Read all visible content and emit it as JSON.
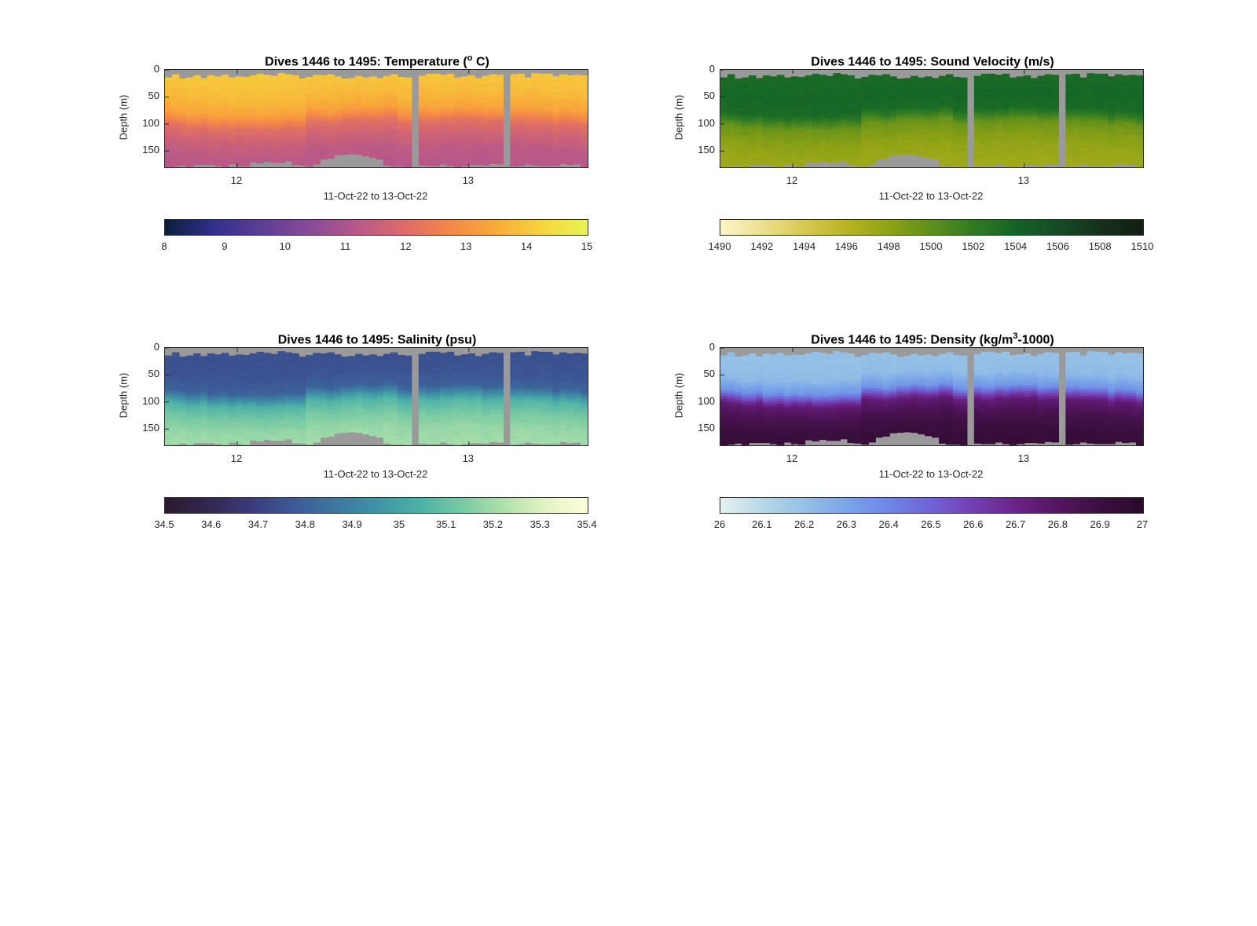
{
  "figure": {
    "xlabel": "11-Oct-22 to 13-Oct-22",
    "ylabel": "Depth (m)",
    "yticks": [
      "0",
      "50",
      "100",
      "150"
    ],
    "xticks": [
      "12",
      "13"
    ]
  },
  "panels": [
    {
      "title_main": "Dives 1446 to 1495: Temperature (",
      "title_sup": "o",
      "title_end": " C)",
      "colormap": [
        "#0a1f3a",
        "#2f2f8a",
        "#5a3e96",
        "#86489a",
        "#b3568c",
        "#d9696c",
        "#f3854a",
        "#f8a93a",
        "#f6d43c",
        "#e8f454"
      ],
      "cbar_ticks": [
        "8",
        "9",
        "10",
        "11",
        "12",
        "13",
        "14",
        "15"
      ]
    },
    {
      "title_main": "Dives 1446 to 1495: Sound Velocity (m/s)",
      "title_sup": "",
      "title_end": "",
      "colormap": [
        "#fcf6c8",
        "#ecdf8e",
        "#d7c952",
        "#b7b421",
        "#8ea215",
        "#5e8f1c",
        "#2f7a23",
        "#136427",
        "#154b26",
        "#15301c",
        "#121f15"
      ],
      "cbar_ticks": [
        "1490",
        "1492",
        "1494",
        "1496",
        "1498",
        "1500",
        "1502",
        "1504",
        "1506",
        "1508",
        "1510"
      ]
    },
    {
      "title_main": "Dives 1446 to 1495: Salinity (psu)",
      "title_sup": "",
      "title_end": "",
      "colormap": [
        "#2a1a2e",
        "#33264f",
        "#3a3a7a",
        "#3c5896",
        "#3d76a0",
        "#3f93a6",
        "#4cb0a6",
        "#77c9a3",
        "#aee0aa",
        "#e3f3c2",
        "#fdfedb"
      ],
      "cbar_ticks": [
        "34.5",
        "34.6",
        "34.7",
        "34.8",
        "34.9",
        "35",
        "35.1",
        "35.2",
        "35.3",
        "35.4"
      ]
    },
    {
      "title_main": "Dives 1446 to 1495: Density (kg/m",
      "title_sup": "3",
      "title_end": "-1000)",
      "colormap": [
        "#e6f1f1",
        "#b5d8e6",
        "#95c0e6",
        "#7aa4e8",
        "#6d86e4",
        "#7162d4",
        "#733fb0",
        "#6a2388",
        "#54155f",
        "#3a0f3e",
        "#2a0a2c"
      ],
      "cbar_ticks": [
        "26",
        "26.1",
        "26.2",
        "26.3",
        "26.4",
        "26.5",
        "26.6",
        "26.7",
        "26.8",
        "26.9",
        "27"
      ]
    }
  ],
  "chart_data": [
    {
      "type": "heatmap",
      "title": "Dives 1446 to 1495: Temperature (° C)",
      "xlabel": "11-Oct-22 to 13-Oct-22",
      "ylabel": "Depth (m)",
      "ylim": [
        0,
        180
      ],
      "y_reversed": true,
      "x_ticks": [
        "12",
        "13"
      ],
      "colorbar": {
        "min": 8,
        "max": 15,
        "ticks": [
          8,
          9,
          10,
          11,
          12,
          13,
          14,
          15
        ]
      },
      "depth": [
        0,
        25,
        50,
        75,
        90,
        100,
        125,
        150,
        175
      ],
      "profile_value": [
        14.0,
        13.9,
        13.7,
        13.3,
        12.6,
        12.1,
        11.6,
        11.3,
        11.2
      ]
    },
    {
      "type": "heatmap",
      "title": "Dives 1446 to 1495: Sound Velocity (m/s)",
      "xlabel": "11-Oct-22 to 13-Oct-22",
      "ylabel": "Depth (m)",
      "ylim": [
        0,
        180
      ],
      "y_reversed": true,
      "x_ticks": [
        "12",
        "13"
      ],
      "colorbar": {
        "min": 1490,
        "max": 1510,
        "ticks": [
          1490,
          1492,
          1494,
          1496,
          1498,
          1500,
          1502,
          1504,
          1506,
          1508,
          1510
        ]
      },
      "depth": [
        0,
        25,
        50,
        75,
        90,
        100,
        125,
        150,
        175
      ],
      "profile_value": [
        1503.5,
        1503.6,
        1503.8,
        1503.4,
        1501.2,
        1499.5,
        1498.3,
        1497.6,
        1497.2
      ]
    },
    {
      "type": "heatmap",
      "title": "Dives 1446 to 1495: Salinity (psu)",
      "xlabel": "11-Oct-22 to 13-Oct-22",
      "ylabel": "Depth (m)",
      "ylim": [
        0,
        180
      ],
      "y_reversed": true,
      "x_ticks": [
        "12",
        "13"
      ],
      "colorbar": {
        "min": 34.5,
        "max": 35.4,
        "ticks": [
          34.5,
          34.6,
          34.7,
          34.8,
          34.9,
          35,
          35.1,
          35.2,
          35.3,
          35.4
        ]
      },
      "depth": [
        0,
        25,
        50,
        75,
        90,
        100,
        125,
        150,
        175
      ],
      "profile_value": [
        34.75,
        34.75,
        34.76,
        34.8,
        34.95,
        35.05,
        35.13,
        35.18,
        35.2
      ]
    },
    {
      "type": "heatmap",
      "title": "Dives 1446 to 1495: Density (kg/m3-1000)",
      "xlabel": "11-Oct-22 to 13-Oct-22",
      "ylabel": "Depth (m)",
      "ylim": [
        0,
        180
      ],
      "y_reversed": true,
      "x_ticks": [
        "12",
        "13"
      ],
      "colorbar": {
        "min": 26,
        "max": 27,
        "ticks": [
          26,
          26.1,
          26.2,
          26.3,
          26.4,
          26.5,
          26.6,
          26.7,
          26.8,
          26.9,
          27
        ]
      },
      "depth": [
        0,
        25,
        50,
        75,
        90,
        100,
        125,
        150,
        175
      ],
      "profile_value": [
        26.2,
        26.2,
        26.22,
        26.35,
        26.6,
        26.75,
        26.85,
        26.9,
        26.93
      ]
    }
  ]
}
